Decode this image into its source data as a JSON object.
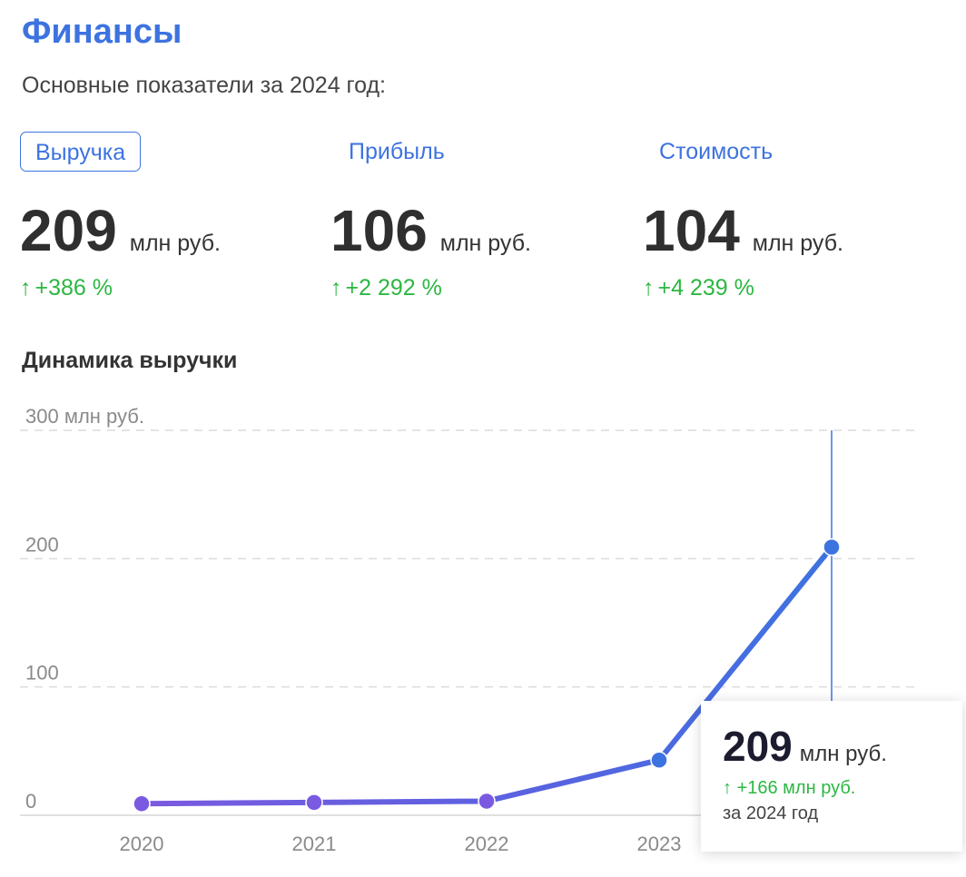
{
  "header": {
    "title": "Финансы",
    "subtitle": "Основные показатели за 2024 год:"
  },
  "tabs": [
    {
      "label": "Выручка",
      "active": true
    },
    {
      "label": "Прибыль",
      "active": false
    },
    {
      "label": "Стоимость",
      "active": false
    }
  ],
  "metrics": [
    {
      "value": "209",
      "unit": "млн руб.",
      "delta": "+386 %"
    },
    {
      "value": "106",
      "unit": "млн руб.",
      "delta": "+2 292 %"
    },
    {
      "value": "104",
      "unit": "млн руб.",
      "delta": "+4 239 %"
    }
  ],
  "section_title": "Динамика выручки",
  "colors": {
    "accent": "#3d73e0",
    "positive": "#2cb742",
    "line_start": "#7a5ae0",
    "line_end": "#3d73e0"
  },
  "icons": {
    "delta": "arrow-up-icon"
  },
  "arrow_glyph": "↑",
  "chart_data": {
    "type": "line",
    "categories": [
      "2020",
      "2021",
      "2022",
      "2023",
      "2024"
    ],
    "values": [
      9,
      10,
      11,
      43,
      209
    ],
    "title": "",
    "xlabel": "",
    "ylabel": "",
    "ylim": [
      0,
      300
    ],
    "y_ticks": [
      0,
      100,
      200,
      300
    ],
    "y_tick_labels": [
      "0",
      "100",
      "200",
      "300 млн руб."
    ],
    "grid": true,
    "highlight_index": 4
  },
  "tooltip": {
    "value": "209",
    "unit": "млн руб.",
    "delta": "+166 млн руб.",
    "period": "за 2024 год"
  }
}
